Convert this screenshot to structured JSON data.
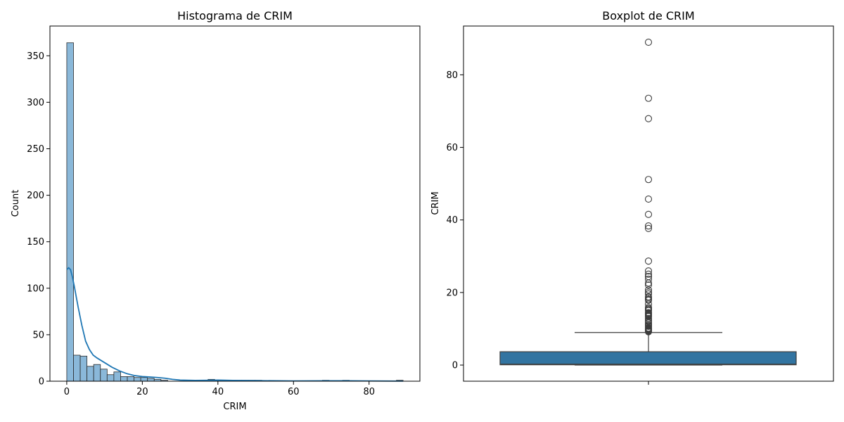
{
  "colors": {
    "bar_fill": "#8ab8d9",
    "bar_edge": "#2b2b2b",
    "kde_line": "#1f77b4",
    "box_fill": "#3274a1",
    "box_edge": "#3d3d3d"
  },
  "chart_data": [
    {
      "type": "histogram",
      "title": "Histograma de CRIM",
      "xlabel": "CRIM",
      "ylabel": "Count",
      "xlim": [
        -4.45,
        93.45
      ],
      "ylim": [
        0,
        382
      ],
      "x_ticks": [
        0,
        20,
        40,
        60,
        80
      ],
      "y_ticks": [
        0,
        50,
        100,
        150,
        200,
        250,
        300,
        350
      ],
      "bin_start": 0.006,
      "bin_width": 1.78,
      "counts": [
        364,
        28,
        27,
        16,
        18,
        13,
        7,
        10,
        5,
        5,
        4,
        4,
        3,
        2,
        1,
        0,
        0,
        0,
        0,
        0,
        0,
        2,
        1,
        1,
        1,
        1,
        1,
        1,
        1,
        0,
        0,
        0,
        0,
        0,
        0,
        0,
        0,
        0,
        1,
        0,
        0,
        1,
        0,
        0,
        0,
        0,
        0,
        0,
        0,
        1
      ],
      "kde": {
        "x": [
          0,
          0.5,
          1,
          1.5,
          2,
          3,
          4,
          5,
          6,
          7,
          8,
          10,
          12,
          14,
          16,
          18,
          20,
          22,
          24,
          26,
          28,
          30,
          34,
          38,
          40,
          44,
          50,
          60,
          70,
          74,
          80,
          89
        ],
        "y": [
          120,
          122,
          120,
          112,
          102,
          80,
          60,
          43,
          34,
          28,
          25,
          20,
          15,
          11,
          8,
          6,
          5,
          4.5,
          4,
          3.2,
          2,
          1.2,
          0.8,
          1,
          1.2,
          0.8,
          0.6,
          0.3,
          0.5,
          0.5,
          0.3,
          0.1
        ]
      }
    },
    {
      "type": "boxplot",
      "title": "Boxplot de CRIM",
      "ylabel": "CRIM",
      "ylim": [
        -4.45,
        93.45
      ],
      "y_ticks": [
        0,
        20,
        40,
        60,
        80
      ],
      "box": {
        "min": 0.006,
        "q1": 0.082,
        "median": 0.257,
        "q3": 3.677,
        "whisker_high": 8.98
      },
      "outliers": [
        88.98,
        73.53,
        67.92,
        51.14,
        45.75,
        41.53,
        38.35,
        37.66,
        28.66,
        25.95,
        25.05,
        24.39,
        23.65,
        22.6,
        22.05,
        20.72,
        20.08,
        19.61,
        18.81,
        18.5,
        18.08,
        17.87,
        16.81,
        15.88,
        15.58,
        15.29,
        15.02,
        14.44,
        14.33,
        14.24,
        14.05,
        13.91,
        13.68,
        13.52,
        13.36,
        12.81,
        12.25,
        12.05,
        11.95,
        11.58,
        11.11,
        11.09,
        10.84,
        10.67,
        10.23,
        10.06,
        9.97,
        9.92,
        9.82,
        9.72,
        9.59,
        9.52,
        9.51,
        9.39,
        9.33,
        9.19
      ]
    }
  ]
}
